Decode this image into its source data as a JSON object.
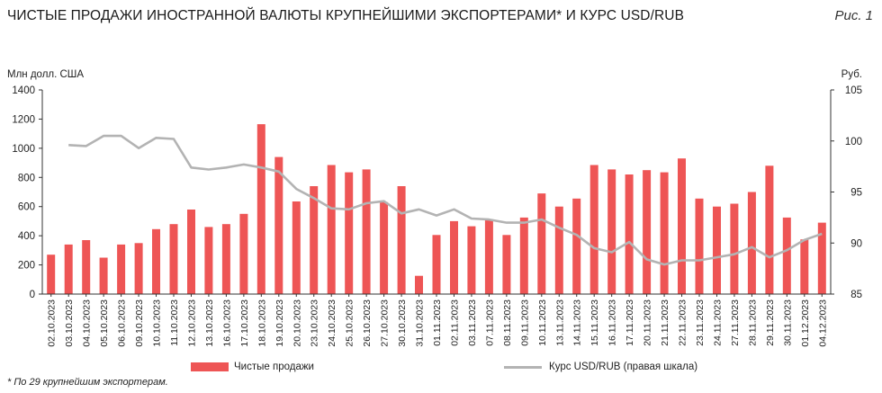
{
  "header": {
    "title": "ЧИСТЫЕ ПРОДАЖИ ИНОСТРАННОЙ ВАЛЮТЫ КРУПНЕЙШИМИ ЭКСПОРТЕРАМИ* И КУРС USD/RUB",
    "figure_label": "Рис. 1"
  },
  "footnote": "* По 29 крупнейшим экспортерам.",
  "colors": {
    "bars": "#ee5555",
    "line": "#b3b3b3",
    "axis": "#333333"
  },
  "chart_data": {
    "type": "bar",
    "ylabel": "Млн долл. США",
    "y2label": "Руб.",
    "ylim": [
      0,
      1400
    ],
    "yticks": [
      0,
      200,
      400,
      600,
      800,
      1000,
      1200,
      1400
    ],
    "y2lim": [
      85,
      105
    ],
    "y2ticks": [
      85,
      90,
      95,
      100,
      105
    ],
    "grid": false,
    "legend_position": "bottom",
    "categories": [
      "02.10.2023",
      "03.10.2023",
      "04.10.2023",
      "05.10.2023",
      "06.10.2023",
      "09.10.2023",
      "10.10.2023",
      "11.10.2023",
      "12.10.2023",
      "13.10.2023",
      "16.10.2023",
      "17.10.2023",
      "18.10.2023",
      "19.10.2023",
      "20.10.2023",
      "23.10.2023",
      "24.10.2023",
      "25.10.2023",
      "26.10.2023",
      "27.10.2023",
      "30.10.2023",
      "31.10.2023",
      "01.11.2023",
      "02.11.2023",
      "03.11.2023",
      "07.11.2023",
      "08.11.2023",
      "09.11.2023",
      "10.11.2023",
      "13.11.2023",
      "14.11.2023",
      "15.11.2023",
      "16.11.2023",
      "17.11.2023",
      "20.11.2023",
      "21.11.2023",
      "22.11.2023",
      "23.11.2023",
      "24.11.2023",
      "27.11.2023",
      "28.11.2023",
      "29.11.2023",
      "30.11.2023",
      "01.12.2023",
      "04.12.2023"
    ],
    "series": [
      {
        "name": "Чистые продажи",
        "type": "bar",
        "axis": "left",
        "values": [
          270,
          340,
          370,
          250,
          340,
          350,
          445,
          480,
          580,
          460,
          480,
          550,
          1165,
          940,
          635,
          740,
          885,
          835,
          855,
          630,
          740,
          125,
          405,
          500,
          465,
          510,
          405,
          525,
          690,
          600,
          655,
          885,
          855,
          820,
          850,
          835,
          930,
          655,
          600,
          620,
          700,
          880,
          525,
          375,
          490
        ]
      },
      {
        "name": "Курс USD/RUB (правая шкала)",
        "type": "line",
        "axis": "right",
        "values": [
          null,
          99.6,
          99.5,
          100.5,
          100.5,
          99.3,
          100.3,
          100.2,
          97.4,
          97.2,
          97.4,
          97.7,
          97.4,
          97.0,
          95.3,
          94.4,
          93.4,
          93.3,
          93.9,
          94.1,
          92.9,
          93.3,
          92.7,
          93.3,
          92.4,
          92.3,
          92.0,
          92.0,
          92.3,
          91.5,
          90.8,
          89.5,
          89.1,
          90.1,
          88.4,
          87.9,
          88.3,
          88.3,
          88.6,
          88.9,
          89.6,
          88.6,
          89.3,
          90.3,
          90.9
        ]
      }
    ]
  }
}
